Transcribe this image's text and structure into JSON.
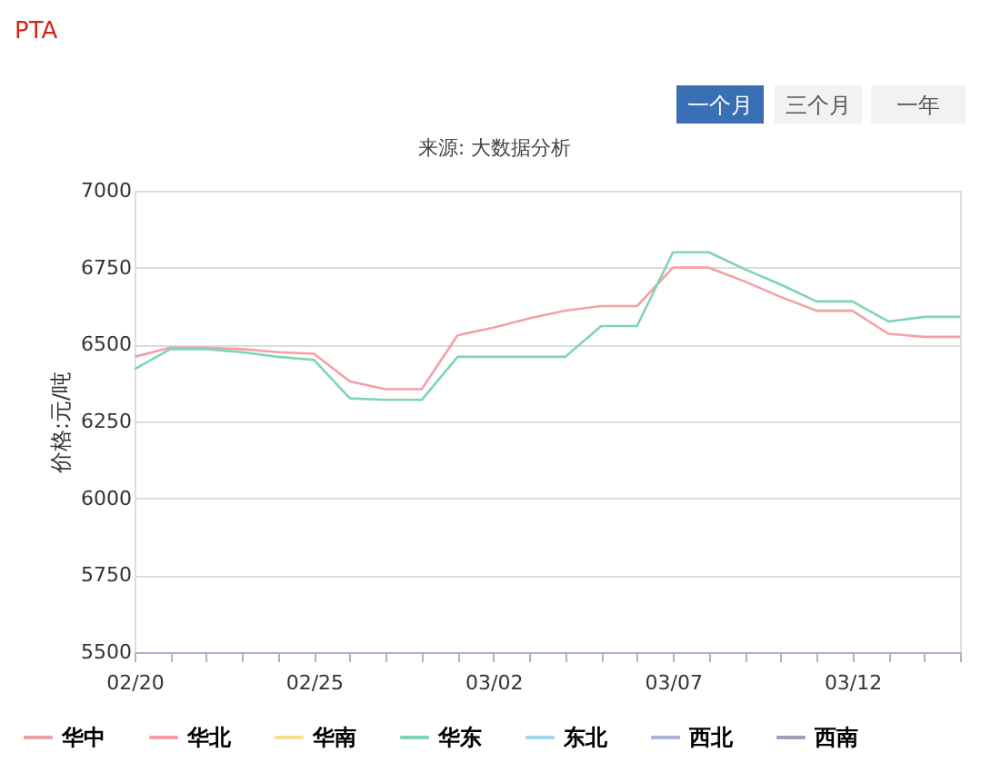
{
  "chart_data": {
    "type": "line",
    "title": "PTA",
    "ylabel": "价格:元/吨",
    "annotations": [
      "一个月",
      "三个月",
      "一年",
      "来源: 大数据分析"
    ],
    "categories": [
      "02/20",
      null,
      null,
      null,
      null,
      "02/25",
      null,
      null,
      null,
      null,
      "03/02",
      null,
      null,
      null,
      null,
      "03/07",
      null,
      null,
      null,
      null,
      "03/12",
      null,
      null,
      null
    ],
    "series": [
      {
        "name": "华中",
        "color": "#e6a3a3",
        "values": [
          null,
          null,
          null,
          null,
          null,
          null,
          null,
          null,
          null,
          null,
          null,
          null,
          null,
          null,
          null,
          null,
          null,
          null,
          null,
          null,
          null,
          null,
          null,
          null
        ]
      },
      {
        "name": "华北",
        "color": "#f4a0a8",
        "values": [
          6460,
          6490,
          6490,
          6485,
          6475,
          6470,
          6380,
          6355,
          6355,
          6530,
          6555,
          6585,
          6610,
          6625,
          6625,
          6750,
          6750,
          6705,
          6655,
          6610,
          6610,
          6535,
          6525,
          6525
        ]
      },
      {
        "name": "华南",
        "color": "#f7e08e",
        "values": [
          null,
          null,
          null,
          null,
          null,
          null,
          null,
          null,
          null,
          null,
          null,
          null,
          null,
          null,
          null,
          null,
          null,
          null,
          null,
          null,
          null,
          null,
          null,
          null
        ]
      },
      {
        "name": "华东",
        "color": "#7fd4b8",
        "values": [
          6420,
          6485,
          6485,
          6475,
          6460,
          6450,
          6325,
          6320,
          6320,
          6460,
          6460,
          6460,
          6460,
          6560,
          6560,
          6800,
          6800,
          6745,
          6695,
          6640,
          6640,
          6575,
          6590,
          6590
        ]
      },
      {
        "name": "东北",
        "color": "#a3d6f0",
        "values": [
          null,
          null,
          null,
          null,
          null,
          null,
          null,
          null,
          null,
          null,
          null,
          null,
          null,
          null,
          null,
          null,
          null,
          null,
          null,
          null,
          null,
          null,
          null,
          null
        ]
      },
      {
        "name": "西北",
        "color": "#a9b3d6",
        "values": [
          null,
          null,
          null,
          null,
          null,
          null,
          null,
          null,
          null,
          null,
          null,
          null,
          null,
          null,
          null,
          null,
          null,
          null,
          null,
          null,
          null,
          null,
          null,
          null
        ]
      },
      {
        "name": "西南",
        "color": "#9e9eb8",
        "values": [
          null,
          null,
          null,
          null,
          null,
          null,
          null,
          null,
          null,
          null,
          null,
          null,
          null,
          null,
          null,
          null,
          null,
          null,
          null,
          null,
          null,
          null,
          null,
          null
        ]
      }
    ],
    "ylim": [
      5500,
      7000
    ],
    "yticks": [
      5500,
      5750,
      6000,
      6250,
      6500,
      6750,
      7000
    ],
    "grid": "y",
    "legend": "bottom",
    "line_style": "solid"
  }
}
